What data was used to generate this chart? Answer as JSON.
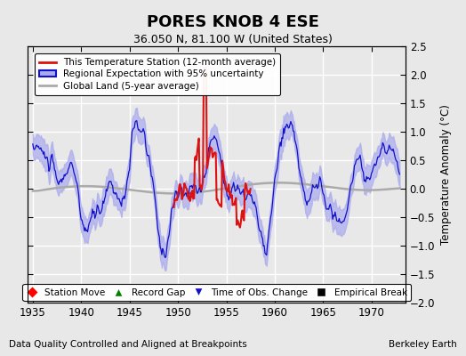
{
  "title": "PORES KNOB 4 ESE",
  "subtitle": "36.050 N, 81.100 W (United States)",
  "ylabel": "Temperature Anomaly (°C)",
  "xlabel_left": "Data Quality Controlled and Aligned at Breakpoints",
  "xlabel_right": "Berkeley Earth",
  "ylim": [
    -2.0,
    2.5
  ],
  "xlim": [
    1934.5,
    1973.5
  ],
  "xticks": [
    1935,
    1940,
    1945,
    1950,
    1955,
    1960,
    1965,
    1970
  ],
  "yticks": [
    -2,
    -1.5,
    -1,
    -0.5,
    0,
    0.5,
    1,
    1.5,
    2,
    2.5
  ],
  "bg_color": "#e8e8e8",
  "plot_bg_color": "#e8e8e8",
  "grid_color": "white",
  "red_color": "#dd1111",
  "blue_color": "#1111cc",
  "blue_fill_color": "#aaaaee",
  "gray_color": "#aaaaaa",
  "legend1_labels": [
    "This Temperature Station (12-month average)",
    "Regional Expectation with 95% uncertainty",
    "Global Land (5-year average)"
  ],
  "legend2_labels": [
    "Station Move",
    "Record Gap",
    "Time of Obs. Change",
    "Empirical Break"
  ]
}
